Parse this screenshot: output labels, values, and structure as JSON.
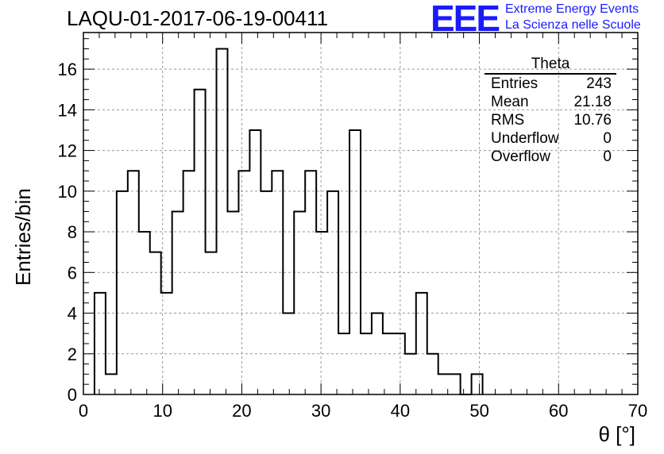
{
  "title": "LAQU-01-2017-06-19-00411",
  "logo": {
    "mark": "EEE",
    "line1": "Extreme Energy Events",
    "line2": "La Scienza nelle Scuole",
    "color": "#1a1aff"
  },
  "stats_box": {
    "name": "Theta",
    "rows": [
      {
        "label": "Entries",
        "value": "243"
      },
      {
        "label": "Mean",
        "value": "21.18"
      },
      {
        "label": "RMS",
        "value": "10.76"
      },
      {
        "label": "Underflow",
        "value": "0"
      },
      {
        "label": "Overflow",
        "value": "0"
      }
    ]
  },
  "chart_data": {
    "type": "bar",
    "title": "LAQU-01-2017-06-19-00411",
    "xlabel": "θ [°]",
    "ylabel": "Entries/bin",
    "xlim": [
      0,
      70
    ],
    "ylim": [
      0,
      17.8
    ],
    "x_ticks": [
      0,
      10,
      20,
      30,
      40,
      50,
      60,
      70
    ],
    "y_ticks": [
      0,
      2,
      4,
      6,
      8,
      10,
      12,
      14,
      16
    ],
    "grid": true,
    "histogram": true,
    "bin_width": 1.4,
    "bin_edges_start": 1.4,
    "values": [
      5,
      1,
      10,
      11,
      8,
      7,
      5,
      9,
      11,
      15,
      7,
      17,
      9,
      11,
      13,
      10,
      11,
      4,
      9,
      11,
      8,
      10,
      3,
      13,
      3,
      4,
      3,
      3,
      2,
      5,
      2,
      1,
      1,
      0,
      1
    ]
  }
}
